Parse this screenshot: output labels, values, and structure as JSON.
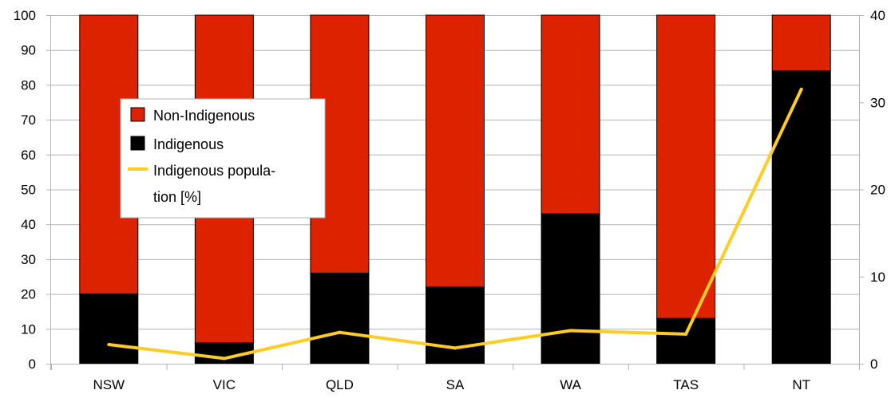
{
  "chart_data": {
    "type": "bar",
    "stacked": true,
    "categories": [
      "NSW",
      "VIC",
      "QLD",
      "SA",
      "WA",
      "TAS",
      "NT"
    ],
    "series": [
      {
        "name": "Non-Indigenous",
        "kind": "bar",
        "axis": "left",
        "color": "#dd2200",
        "values": [
          80,
          94,
          74,
          78,
          57,
          87,
          16
        ]
      },
      {
        "name": "Indigenous",
        "kind": "bar",
        "axis": "left",
        "color": "#000000",
        "values": [
          20,
          6,
          26,
          22,
          43,
          13,
          84
        ]
      },
      {
        "name": "Indigenous popula-\ntion [%]",
        "kind": "line",
        "axis": "right",
        "color": "#ffcc22",
        "values": [
          2.2,
          0.6,
          3.6,
          1.8,
          3.8,
          3.4,
          31.5
        ]
      }
    ],
    "y_left": {
      "min": 0,
      "max": 100,
      "ticks": [
        0,
        10,
        20,
        30,
        40,
        50,
        60,
        70,
        80,
        90,
        100
      ]
    },
    "y_right": {
      "min": 0,
      "max": 40,
      "ticks": [
        0,
        10,
        20,
        30,
        40
      ]
    },
    "grid": true,
    "legend": {
      "placement": "inside-left",
      "items": [
        "Non-Indigenous",
        "Indigenous",
        "Indigenous popula-",
        "tion [%]"
      ]
    }
  }
}
